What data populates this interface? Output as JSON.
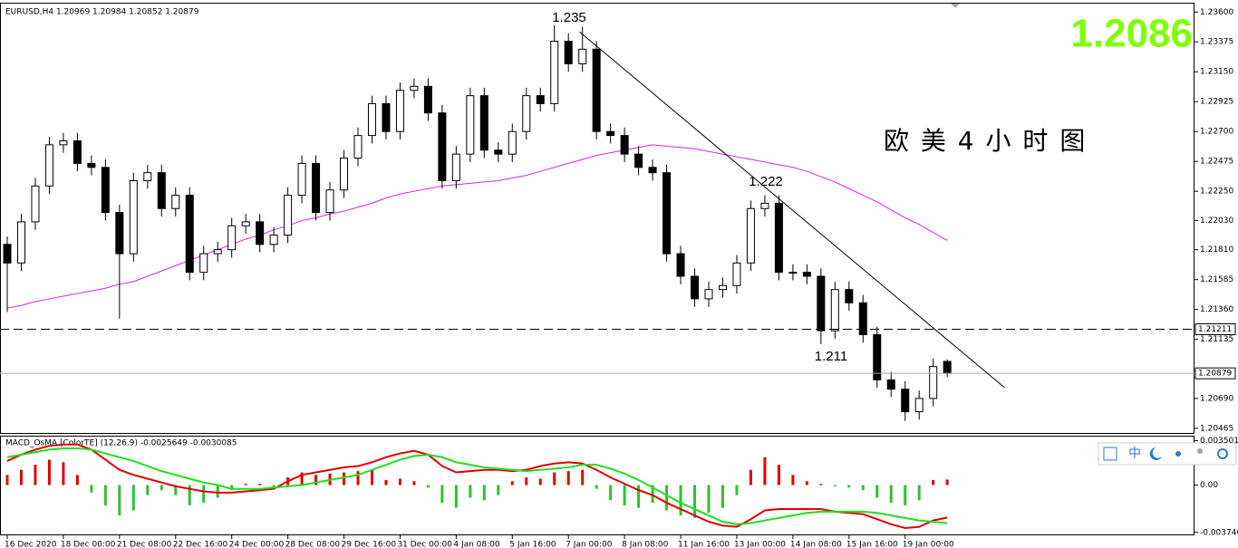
{
  "chart_data": [
    {
      "type": "candlestick",
      "title": "EURUSD,H4  1.20969 1.20984 1.20852 1.20879",
      "categories": [
        "16 Dec 2020",
        null,
        null,
        null,
        "18 Dec 00:00",
        null,
        null,
        null,
        "21 Dec 08:00",
        null,
        null,
        null,
        "22 Dec 16:00",
        null,
        null,
        null,
        "24 Dec 00:00",
        null,
        null,
        null,
        "28 Dec 08:00",
        null,
        null,
        null,
        "29 Dec 16:00",
        null,
        null,
        null,
        "31 Dec 00:00",
        null,
        null,
        null,
        "4 Jan 08:00",
        null,
        null,
        null,
        "5 Jan 16:00",
        null,
        null,
        null,
        "7 Jan 00:00",
        null,
        null,
        null,
        "8 Jan 08:00",
        null,
        null,
        null,
        "11 Jan 16:00",
        null,
        null,
        null,
        "13 Jan 00:00",
        null,
        null,
        null,
        "14 Jan 08:00",
        null,
        null,
        null,
        "15 Jan 16:00",
        null,
        null,
        null,
        "19 Jan 00:00",
        null,
        null,
        null
      ],
      "open": [
        1.2185,
        1.2171,
        1.2202,
        1.2229,
        1.226,
        1.2263,
        1.2246,
        1.2243,
        1.2209,
        1.2178,
        1.2233,
        1.2239,
        1.2212,
        1.2222,
        1.2164,
        1.2178,
        1.2181,
        1.2199,
        1.2202,
        1.2185,
        1.2192,
        1.2222,
        1.2246,
        1.2209,
        1.2226,
        1.225,
        1.2267,
        1.2291,
        1.227,
        1.2301,
        1.2304,
        1.2284,
        1.2233,
        1.2253,
        1.2297,
        1.2256,
        1.2253,
        1.227,
        1.2297,
        1.2291,
        1.2338,
        1.2321,
        1.2332,
        1.227,
        1.2267,
        1.2253,
        1.2243,
        1.2239,
        1.2178,
        1.2161,
        1.2144,
        1.2151,
        1.2154,
        1.2171,
        1.2212,
        1.2216,
        1.2164,
        1.2164,
        1.2161,
        1.212,
        1.2151,
        1.2141,
        1.2117,
        1.2083,
        1.2076,
        1.2059,
        1.2069,
        1.20969
      ],
      "high": [
        1.2191,
        1.2208,
        1.2235,
        1.2266,
        1.2269,
        1.2269,
        1.2252,
        1.2249,
        1.2215,
        1.2239,
        1.2245,
        1.2245,
        1.2228,
        1.2228,
        1.2184,
        1.2187,
        1.2205,
        1.2208,
        1.2208,
        1.2198,
        1.2228,
        1.2252,
        1.2252,
        1.2232,
        1.2256,
        1.2273,
        1.2297,
        1.2297,
        1.2307,
        1.231,
        1.231,
        1.229,
        1.2259,
        1.2303,
        1.2303,
        1.2262,
        1.2276,
        1.2303,
        1.2303,
        1.235,
        1.2344,
        1.2349,
        1.2338,
        1.2276,
        1.2273,
        1.2259,
        1.2249,
        1.2245,
        1.2184,
        1.2167,
        1.2157,
        1.216,
        1.2177,
        1.2218,
        1.2222,
        1.2222,
        1.217,
        1.217,
        1.2167,
        1.2157,
        1.2157,
        1.2147,
        1.2123,
        1.2089,
        1.2082,
        1.2075,
        1.2099,
        1.20984
      ],
      "low": [
        1.2134,
        1.2165,
        1.2196,
        1.2223,
        1.2254,
        1.224,
        1.2237,
        1.2203,
        1.2129,
        1.2172,
        1.2227,
        1.2206,
        1.2206,
        1.2158,
        1.2158,
        1.2172,
        1.2175,
        1.2193,
        1.2179,
        1.2179,
        1.2186,
        1.2216,
        1.2203,
        1.2203,
        1.222,
        1.2244,
        1.2261,
        1.2264,
        1.2264,
        1.2295,
        1.2278,
        1.2227,
        1.2227,
        1.2247,
        1.225,
        1.2247,
        1.2247,
        1.2264,
        1.2285,
        1.2285,
        1.2315,
        1.2315,
        1.2264,
        1.2261,
        1.2247,
        1.2237,
        1.2233,
        1.2172,
        1.2155,
        1.2138,
        1.2138,
        1.2145,
        1.2148,
        1.2165,
        1.2206,
        1.2158,
        1.2158,
        1.2155,
        1.211,
        1.2114,
        1.2135,
        1.2111,
        1.2077,
        1.207,
        1.2052,
        1.2053,
        1.2063,
        1.20852
      ],
      "close": [
        1.2171,
        1.2202,
        1.2229,
        1.226,
        1.2263,
        1.2246,
        1.2243,
        1.2209,
        1.2178,
        1.2233,
        1.2239,
        1.2212,
        1.2222,
        1.2164,
        1.2178,
        1.2181,
        1.2199,
        1.2202,
        1.2185,
        1.2192,
        1.2222,
        1.2246,
        1.2209,
        1.2226,
        1.225,
        1.2267,
        1.2291,
        1.227,
        1.2301,
        1.2304,
        1.2284,
        1.2233,
        1.2253,
        1.2297,
        1.2256,
        1.2253,
        1.227,
        1.2297,
        1.2291,
        1.2338,
        1.2321,
        1.2332,
        1.227,
        1.2267,
        1.2253,
        1.2243,
        1.2239,
        1.2178,
        1.2161,
        1.2144,
        1.2151,
        1.2154,
        1.2171,
        1.2212,
        1.2216,
        1.2164,
        1.2164,
        1.2161,
        1.212,
        1.2151,
        1.2141,
        1.2117,
        1.2083,
        1.2076,
        1.2059,
        1.2069,
        1.2093,
        1.20879
      ],
      "up_color": "#ffffff",
      "down_color": "#000000",
      "ma": {
        "color": "#e020e0",
        "values": [
          1.2137,
          1.2139,
          1.2142,
          1.2144,
          1.2146,
          1.2148,
          1.215,
          1.2152,
          1.2155,
          1.2157,
          1.2161,
          1.2165,
          1.2169,
          1.2173,
          1.2177,
          1.2181,
          1.2185,
          1.2189,
          1.2192,
          1.2196,
          1.2199,
          1.2203,
          1.2205,
          1.2208,
          1.221,
          1.2213,
          1.2216,
          1.222,
          1.2223,
          1.2225,
          1.2227,
          1.2229,
          1.223,
          1.2231,
          1.2232,
          1.2233,
          1.2235,
          1.2237,
          1.224,
          1.2243,
          1.2246,
          1.2249,
          1.2252,
          1.2254,
          1.2256,
          1.2258,
          1.226,
          1.2259,
          1.2258,
          1.2257,
          1.2255,
          1.2253,
          1.2251,
          1.2249,
          1.2247,
          1.2245,
          1.2243,
          1.224,
          1.2236,
          1.2232,
          1.2227,
          1.2222,
          1.2217,
          1.2211,
          1.2205,
          1.22,
          1.2194,
          1.2188
        ]
      },
      "trendline": {
        "x": [
          40.8,
          71.1
        ],
        "y": [
          1.2345,
          1.2077
        ]
      },
      "hlines": [
        {
          "value": 1.21211,
          "label": "1.21211",
          "style": "dashed"
        },
        {
          "value": 1.20879,
          "label": "1.20879",
          "style": "solid"
        }
      ],
      "annotations": [
        {
          "text": "1.235"
        },
        {
          "text": "1.222"
        },
        {
          "text": "1.211"
        }
      ],
      "watermark": "欧 美 4 小 时 图",
      "price_label": "1.2086",
      "price_label_color": "#7fff00",
      "ylim": [
        1.2043,
        1.2367
      ],
      "yticks": [
        {
          "value": 1.236,
          "label": "1.23600"
        },
        {
          "value": 1.23375,
          "label": "1.23375"
        },
        {
          "value": 1.2315,
          "label": "1.23150"
        },
        {
          "value": 1.22925,
          "label": "1.22925"
        },
        {
          "value": 1.227,
          "label": "1.22700"
        },
        {
          "value": 1.22475,
          "label": "1.22475"
        },
        {
          "value": 1.2225,
          "label": "1.22250"
        },
        {
          "value": 1.2203,
          "label": "1.22030"
        },
        {
          "value": 1.2181,
          "label": "1.21810"
        },
        {
          "value": 1.21585,
          "label": "1.21585"
        },
        {
          "value": 1.2136,
          "label": "1.21360"
        },
        {
          "value": 1.21135,
          "label": "1.21135"
        },
        {
          "value": 1.2069,
          "label": "1.20690"
        },
        {
          "value": 1.20465,
          "label": "1.20465"
        }
      ]
    },
    {
      "type": "macd",
      "title": "MACD_OsMA [ColorTE] (12,26,9) -0.0025649 -0.0030085",
      "histogram": {
        "up_color": "#e00000",
        "down_color": "#30c030",
        "values": [
          0.0008,
          0.0012,
          0.0016,
          0.002,
          0.0018,
          0.0008,
          -0.0006,
          -0.0016,
          -0.0024,
          -0.002,
          -0.0008,
          -0.0004,
          -0.0008,
          -0.0016,
          -0.0014,
          -0.001,
          -0.0004,
          0.0001,
          0.0001,
          -0.0002,
          0.0006,
          0.001,
          0.0008,
          0.0009,
          0.001,
          0.0011,
          0.0012,
          0.0004,
          0.0005,
          0.0003,
          -0.0002,
          -0.0014,
          -0.0018,
          -0.001,
          -0.0012,
          -0.0008,
          0.0003,
          0.0006,
          0.0005,
          0.001,
          0.0011,
          0.0012,
          -0.0003,
          -0.0012,
          -0.0016,
          -0.0018,
          -0.0014,
          -0.002,
          -0.0024,
          -0.0026,
          -0.0022,
          -0.0018,
          -0.0008,
          0.0012,
          0.0022,
          0.0016,
          0.0008,
          0.0003,
          0.0001,
          -0.0001,
          -0.0002,
          -0.0004,
          -0.001,
          -0.0014,
          -0.0016,
          -0.0012,
          0.0004,
          0.00044
        ]
      },
      "series": [
        {
          "color": "#e00000",
          "values": [
            0.0019,
            0.0024,
            0.0028,
            0.0031,
            0.0032,
            0.0032,
            0.0028,
            0.002,
            0.0012,
            0.0008,
            0.0005,
            0.0002,
            -0.0001,
            -0.0003,
            -0.0005,
            -0.0006,
            -0.0006,
            -0.0005,
            -0.0004,
            -0.0003,
            0.0003,
            0.0008,
            0.001,
            0.0012,
            0.0014,
            0.0015,
            0.0018,
            0.0022,
            0.0025,
            0.0027,
            0.0024,
            0.0015,
            0.001,
            0.0011,
            0.0012,
            0.0012,
            0.0011,
            0.0012,
            0.0015,
            0.0017,
            0.0018,
            0.0017,
            0.0012,
            0.0006,
            0.0001,
            -0.0004,
            -0.0008,
            -0.0014,
            -0.0019,
            -0.0024,
            -0.0029,
            -0.0032,
            -0.0033,
            -0.0027,
            -0.002,
            -0.0019,
            -0.0019,
            -0.0019,
            -0.0019,
            -0.0021,
            -0.0022,
            -0.0023,
            -0.0027,
            -0.0031,
            -0.0034,
            -0.0033,
            -0.0028,
            -0.0025649
          ]
        },
        {
          "color": "#22dd22",
          "values": [
            0.0022,
            0.0024,
            0.0026,
            0.0028,
            0.0029,
            0.0029,
            0.0028,
            0.0025,
            0.0022,
            0.0019,
            0.0015,
            0.0011,
            0.0008,
            0.0005,
            0.0002,
            0.0,
            -0.0003,
            -0.0003,
            -0.0003,
            -0.0002,
            -0.0001,
            0.0,
            0.0002,
            0.0004,
            0.0006,
            0.0008,
            0.0012,
            0.0016,
            0.002,
            0.0023,
            0.0024,
            0.0022,
            0.0018,
            0.0016,
            0.0014,
            0.0013,
            0.0012,
            0.0011,
            0.0012,
            0.0013,
            0.0014,
            0.0016,
            0.0016,
            0.0013,
            0.0009,
            0.0004,
            -0.0002,
            -0.0008,
            -0.0014,
            -0.0019,
            -0.0024,
            -0.0029,
            -0.0031,
            -0.003,
            -0.0028,
            -0.0026,
            -0.0024,
            -0.0022,
            -0.0021,
            -0.0021,
            -0.0021,
            -0.0021,
            -0.0022,
            -0.0024,
            -0.0026,
            -0.0028,
            -0.0029,
            -0.0030085
          ]
        }
      ],
      "ylim": [
        -0.0039,
        0.0039
      ],
      "yticks": [
        0.003501,
        {
          "value": 0,
          "label": "0.00"
        },
        {
          "value": -0.00374,
          "label": "-0.003740"
        }
      ]
    }
  ],
  "toolbar": {
    "lang": "中"
  }
}
